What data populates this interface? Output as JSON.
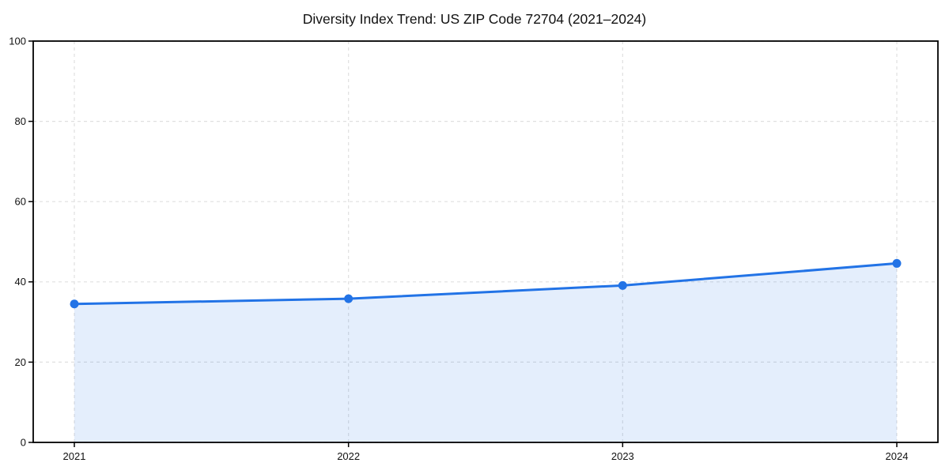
{
  "figure": {
    "background": "#ffffff"
  },
  "chart_data": {
    "type": "area",
    "title": "Diversity Index Trend: US ZIP Code 72704 (2021–2024)",
    "x": [
      2021,
      2022,
      2023,
      2024
    ],
    "xtick_labels": [
      "2021",
      "2022",
      "2023",
      "2024"
    ],
    "series": [
      {
        "name": "Diversity Index",
        "values": [
          34.5,
          35.8,
          39.1,
          44.6
        ]
      }
    ],
    "xlabel": "",
    "ylabel": "",
    "ylim": [
      0,
      100
    ],
    "yticks": [
      0,
      20,
      40,
      60,
      80,
      100
    ],
    "ytick_labels": [
      "0",
      "20",
      "40",
      "60",
      "80",
      "100"
    ],
    "grid": true,
    "grid_style": "dashed",
    "legend": false,
    "legend_position": "none",
    "marker": "circle",
    "colors": {
      "line": "#2273e6",
      "marker": "#2273e6",
      "area_fill": "#2273e6",
      "area_fill_opacity": "0.12",
      "grid": "#e0e0e0",
      "axis": "#000000",
      "text": "#111111",
      "background": "#ffffff"
    }
  }
}
